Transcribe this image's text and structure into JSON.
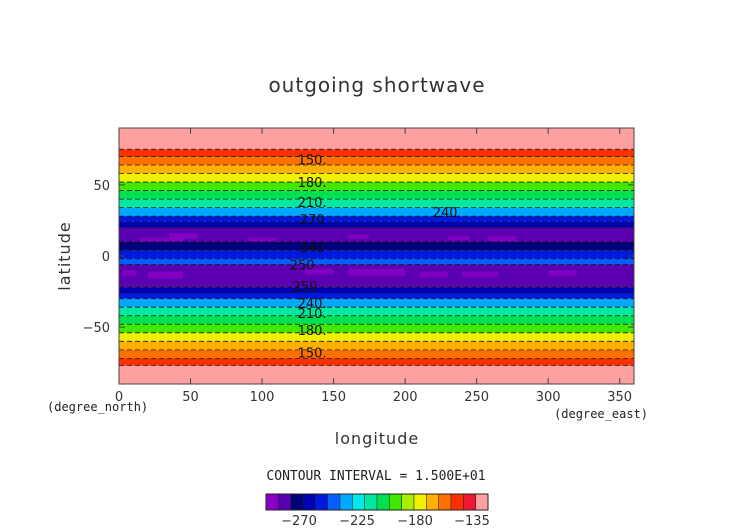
{
  "chart_data": {
    "type": "heatmap",
    "title": "outgoing shortwave",
    "xlabel": "longitude",
    "ylabel": "latitude",
    "x_unit_label": "(degree_east)",
    "y_unit_label": "(degree_north)",
    "xlim": [
      0,
      360
    ],
    "ylim": [
      -90,
      90
    ],
    "x_ticks": [
      0,
      50,
      100,
      150,
      200,
      250,
      300,
      350
    ],
    "y_ticks": [
      -50,
      0,
      50
    ],
    "contour_interval_text": "CONTOUR INTERVAL = 1.500E+01",
    "colorbar": {
      "ticks": [
        "−270",
        "−225",
        "−180",
        "−135"
      ],
      "colors": [
        "#8a00c8",
        "#5a00b0",
        "#00007a",
        "#0000b4",
        "#0018e0",
        "#0060ff",
        "#00a8ff",
        "#00e8e8",
        "#00e8a0",
        "#00e050",
        "#40e800",
        "#a8f000",
        "#f0f000",
        "#ffb000",
        "#ff7000",
        "#ff3000",
        "#f01830",
        "#ffa0a0"
      ]
    },
    "zonal_bands": [
      {
        "lat_min": 75,
        "lat_max": 90,
        "value": -120
      },
      {
        "lat_min": 70,
        "lat_max": 75,
        "value": -140
      },
      {
        "lat_min": 64,
        "lat_max": 70,
        "value": -150
      },
      {
        "lat_min": 58,
        "lat_max": 64,
        "value": -160
      },
      {
        "lat_min": 52,
        "lat_max": 58,
        "value": -175
      },
      {
        "lat_min": 46,
        "lat_max": 52,
        "value": -185
      },
      {
        "lat_min": 40,
        "lat_max": 46,
        "value": -200
      },
      {
        "lat_min": 34,
        "lat_max": 40,
        "value": -210
      },
      {
        "lat_min": 28,
        "lat_max": 34,
        "value": -225
      },
      {
        "lat_min": 24,
        "lat_max": 28,
        "value": -240
      },
      {
        "lat_min": 20,
        "lat_max": 24,
        "value": -255
      },
      {
        "lat_min": 10,
        "lat_max": 20,
        "value": -275
      },
      {
        "lat_min": 4,
        "lat_max": 10,
        "value": -265
      },
      {
        "lat_min": -2,
        "lat_max": 4,
        "value": -245
      },
      {
        "lat_min": -6,
        "lat_max": -2,
        "value": -235
      },
      {
        "lat_min": -22,
        "lat_max": -6,
        "value": -275
      },
      {
        "lat_min": -26,
        "lat_max": -22,
        "value": -255
      },
      {
        "lat_min": -30,
        "lat_max": -26,
        "value": -240
      },
      {
        "lat_min": -36,
        "lat_max": -30,
        "value": -225
      },
      {
        "lat_min": -42,
        "lat_max": -36,
        "value": -210
      },
      {
        "lat_min": -48,
        "lat_max": -42,
        "value": -200
      },
      {
        "lat_min": -54,
        "lat_max": -48,
        "value": -185
      },
      {
        "lat_min": -60,
        "lat_max": -54,
        "value": -175
      },
      {
        "lat_min": -66,
        "lat_max": -60,
        "value": -160
      },
      {
        "lat_min": -72,
        "lat_max": -66,
        "value": -150
      },
      {
        "lat_min": -77,
        "lat_max": -72,
        "value": -140
      },
      {
        "lat_min": -90,
        "lat_max": -77,
        "value": -120
      }
    ],
    "min_patches": [
      {
        "lon_min": 15,
        "lon_max": 45,
        "lat_min": 10,
        "lat_max": 13
      },
      {
        "lon_min": 35,
        "lon_max": 55,
        "lat_min": 12,
        "lat_max": 16
      },
      {
        "lon_min": 90,
        "lon_max": 110,
        "lat_min": 10,
        "lat_max": 13
      },
      {
        "lon_min": 160,
        "lon_max": 175,
        "lat_min": 12,
        "lat_max": 15
      },
      {
        "lon_min": 230,
        "lon_max": 245,
        "lat_min": 11,
        "lat_max": 14
      },
      {
        "lon_min": 258,
        "lon_max": 278,
        "lat_min": 10,
        "lat_max": 14
      },
      {
        "lon_min": 2,
        "lon_max": 12,
        "lat_min": -14,
        "lat_max": -10
      },
      {
        "lon_min": 20,
        "lon_max": 45,
        "lat_min": -16,
        "lat_max": -11
      },
      {
        "lon_min": 130,
        "lon_max": 150,
        "lat_min": -13,
        "lat_max": -9
      },
      {
        "lon_min": 160,
        "lon_max": 200,
        "lat_min": -14,
        "lat_max": -9
      },
      {
        "lon_min": 210,
        "lon_max": 230,
        "lat_min": -15,
        "lat_max": -11
      },
      {
        "lon_min": 240,
        "lon_max": 265,
        "lat_min": -15,
        "lat_max": -11
      },
      {
        "lon_min": 300,
        "lon_max": 320,
        "lat_min": -14,
        "lat_max": -10
      }
    ],
    "contour_labels": [
      {
        "text": "150.",
        "lon": 135,
        "lat": 68
      },
      {
        "text": "180.",
        "lon": 135,
        "lat": 52
      },
      {
        "text": "210.",
        "lon": 135,
        "lat": 38
      },
      {
        "text": "240",
        "lon": 228,
        "lat": 31
      },
      {
        "text": "270",
        "lon": 135,
        "lat": 26
      },
      {
        "text": "240",
        "lon": 135,
        "lat": 6
      },
      {
        "text": "250",
        "lon": 128,
        "lat": -6
      },
      {
        "text": "250",
        "lon": 130,
        "lat": -21
      },
      {
        "text": "240.",
        "lon": 135,
        "lat": -33
      },
      {
        "text": "210.",
        "lon": 135,
        "lat": -40
      },
      {
        "text": "180.",
        "lon": 135,
        "lat": -52
      },
      {
        "text": "150.",
        "lon": 135,
        "lat": -68
      }
    ]
  }
}
